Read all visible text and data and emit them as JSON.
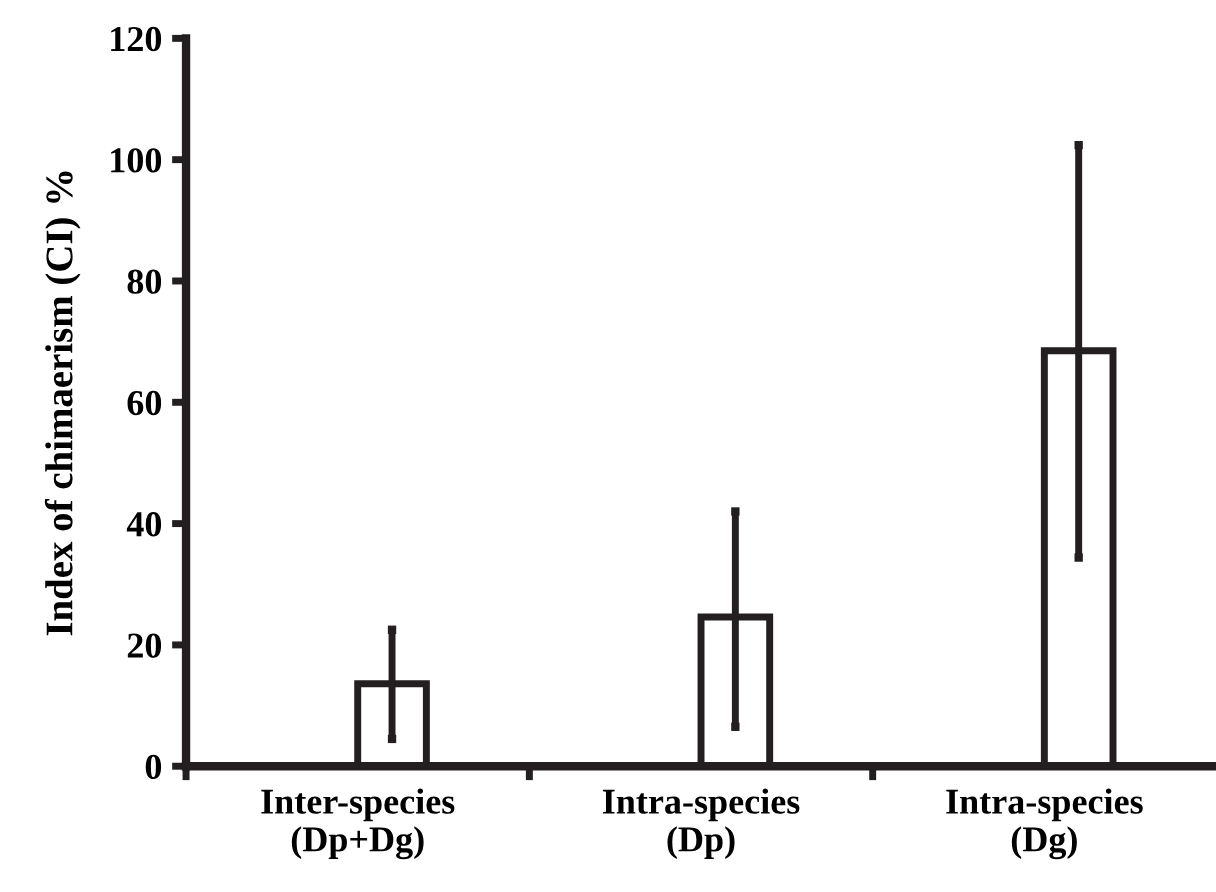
{
  "chart_data": {
    "type": "bar",
    "ylabel": "Index of chimaerism (CI) %",
    "categories": [
      "Inter-species\n(Dp+Dg)",
      "Intra-species\n(Dp)",
      "Intra-species\n(Dg)"
    ],
    "values": [
      13.6,
      24.6,
      68.5
    ],
    "errors": [
      [
        4.5,
        22.5
      ],
      [
        6.5,
        42
      ],
      [
        34.4,
        102.4
      ]
    ],
    "color": "#ffffff",
    "ylim": [
      0,
      120
    ],
    "yticks": [
      0,
      20,
      40,
      60,
      80,
      100,
      120
    ],
    "grid": false,
    "legend": false
  }
}
